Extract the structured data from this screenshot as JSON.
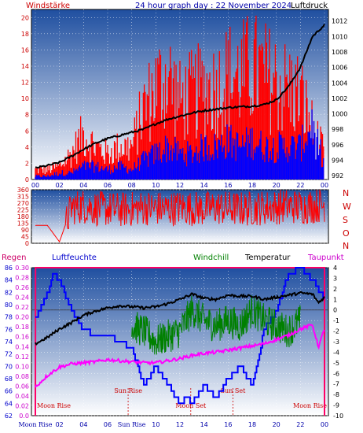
{
  "colors": {
    "panel_top": "#1f4fa0",
    "panel_bottom": "#ffffff",
    "wind_bars": "#ff0000",
    "gust": "#0000ff",
    "pressure_line": "#000000",
    "direction": "#ff0000",
    "humidity": "#0000ff",
    "windchill": "#008000",
    "temperature": "#000000",
    "dewpoint": "#ff00ff",
    "rain": "#ff0066",
    "event_line": "#cc0000"
  },
  "header": {
    "left_label": "Windstärke",
    "title": "24 hour graph day : 22 November 2024",
    "right_label": "Luftdruck"
  },
  "direction_labels": [
    "N",
    "W",
    "S",
    "O",
    "N"
  ],
  "bottom_header": {
    "rain": "Regen",
    "humidity": "Luftfeuchte",
    "windchill": "Windchill",
    "temperature": "Temperatur",
    "dewpoint": "Taupunkt"
  },
  "events": [
    {
      "label": "Moon Rise",
      "hour": 0.0
    },
    {
      "label": "Sun Rise",
      "hour": 7.7
    },
    {
      "label": "Moon Set",
      "hour": 12.9
    },
    {
      "label": "Sun Set",
      "hour": 16.4
    },
    {
      "label": "Moon Rise",
      "hour": 23.3
    }
  ],
  "x_axis_labels": [
    "00",
    "02",
    "04",
    "06",
    "08",
    "10",
    "12",
    "14",
    "16",
    "18",
    "20",
    "22",
    "00"
  ],
  "bottom_x_axis_labels": [
    "Moon Rise",
    "02",
    "04",
    "06",
    "Sun Rise",
    "10",
    "12",
    "14",
    "16",
    "18",
    "20",
    "22",
    "00"
  ],
  "chart_data": [
    {
      "type": "bar",
      "title": "24 hour graph day : 22 November 2024",
      "x_unit": "hour",
      "x_tick_labels": [
        "00",
        "02",
        "04",
        "06",
        "08",
        "10",
        "12",
        "14",
        "16",
        "18",
        "20",
        "22",
        "00"
      ],
      "left_axis": {
        "label": "Windstärke",
        "ticks": [
          0,
          2,
          4,
          6,
          8,
          10,
          12,
          14,
          16,
          18,
          20
        ],
        "range": [
          0,
          21
        ]
      },
      "right_axis": {
        "label": "Luftdruck",
        "ticks": [
          992,
          994,
          996,
          998,
          1000,
          1002,
          1004,
          1006,
          1008,
          1010,
          1012
        ],
        "range": [
          991.5,
          1013.5
        ]
      },
      "series": [
        {
          "name": "Windstärke",
          "kind": "bars",
          "axis": "left",
          "x": [
            0,
            1,
            2,
            3,
            4,
            5,
            6,
            7,
            8,
            9,
            10,
            11,
            12,
            13,
            14,
            15,
            16,
            17,
            18,
            19,
            20,
            21,
            22,
            23,
            24
          ],
          "y": [
            1.5,
            1.5,
            2,
            4,
            7,
            5,
            4,
            5,
            5,
            11,
            14,
            16,
            12,
            13,
            14,
            14,
            16,
            16,
            17,
            16,
            15,
            14,
            13,
            8,
            4
          ]
        },
        {
          "name": "gust",
          "kind": "bars",
          "axis": "left",
          "x": [
            0,
            1,
            2,
            3,
            4,
            5,
            6,
            7,
            8,
            9,
            10,
            11,
            12,
            13,
            14,
            15,
            16,
            17,
            18,
            19,
            20,
            21,
            22,
            23,
            24
          ],
          "y": [
            0.5,
            0.5,
            1,
            1,
            2,
            2,
            1.5,
            2,
            1.5,
            3,
            4,
            5,
            4,
            4,
            5,
            5,
            6,
            5,
            6,
            5,
            5,
            5,
            5,
            9,
            2
          ]
        },
        {
          "name": "Luftdruck",
          "kind": "line",
          "axis": "right",
          "x": [
            0,
            1,
            2,
            3,
            4,
            5,
            6,
            7,
            8,
            9,
            10,
            11,
            12,
            13,
            14,
            15,
            16,
            17,
            18,
            19,
            20,
            21,
            22,
            23,
            24
          ],
          "y": [
            993.0,
            993.3,
            993.7,
            994.5,
            995.4,
            996.2,
            996.8,
            997.2,
            997.6,
            998.0,
            998.7,
            999.3,
            999.7,
            1000.1,
            1000.4,
            1000.6,
            1000.8,
            1000.9,
            1001.0,
            1001.2,
            1001.8,
            1003.5,
            1006.0,
            1010.0,
            1011.5
          ]
        }
      ]
    },
    {
      "type": "line",
      "title": "",
      "x_unit": "hour",
      "y_axis": {
        "ticks": [
          0,
          45,
          90,
          135,
          180,
          225,
          270,
          315,
          360
        ],
        "range": [
          0,
          360
        ]
      },
      "right_labels": [
        "N",
        "W",
        "S",
        "O",
        "N"
      ],
      "series": [
        {
          "name": "direction",
          "x": [
            0,
            1,
            2,
            3,
            4,
            5,
            6,
            7,
            8,
            9,
            10,
            11,
            12,
            13,
            14,
            15,
            16,
            17,
            18,
            19,
            20,
            21,
            22,
            23,
            24
          ],
          "y": [
            120,
            120,
            10,
            240,
            250,
            235,
            230,
            225,
            230,
            240,
            235,
            230,
            240,
            235,
            230,
            240,
            235,
            230,
            235,
            240,
            245,
            250,
            245,
            250,
            260
          ],
          "spread": 120
        }
      ]
    },
    {
      "type": "line",
      "title": "",
      "x_unit": "hour",
      "events": [
        "Moon Rise",
        "Sun Rise",
        "Moon Set",
        "Sun Set",
        "Moon Rise"
      ],
      "axes": {
        "humidity": {
          "label": "Luftfeuchte",
          "ticks": [
            62,
            64,
            66,
            68,
            70,
            72,
            74,
            76,
            78,
            80,
            82,
            84,
            86
          ],
          "range": [
            62,
            86
          ]
        },
        "rain": {
          "label": "Regen",
          "ticks": [
            0.0,
            0.02,
            0.04,
            0.06,
            0.08,
            0.1,
            0.12,
            0.14,
            0.16,
            0.18,
            0.2,
            0.22,
            0.24,
            0.26,
            0.28,
            0.3
          ],
          "range": [
            0,
            0.3
          ]
        },
        "temperature": {
          "label": "Temperatur",
          "ticks": [
            -10,
            -9,
            -8,
            -7,
            -6,
            -5,
            -4,
            -3,
            -2,
            -1,
            0,
            1,
            2,
            3,
            4
          ],
          "range": [
            -10,
            4
          ]
        }
      },
      "series": [
        {
          "name": "Luftfeuchte",
          "axis": "humidity",
          "x": [
            0,
            0.5,
            1,
            1.5,
            2,
            3,
            4,
            5,
            6,
            7,
            8,
            9,
            10,
            11,
            12,
            12.5,
            13,
            14,
            15,
            16,
            17,
            18,
            19,
            20,
            21,
            22,
            23,
            24
          ],
          "y": [
            78,
            80,
            82,
            85,
            84,
            79,
            76,
            75,
            75,
            74,
            73,
            67,
            70,
            67,
            64,
            65,
            64,
            67,
            65,
            68,
            70,
            67,
            76,
            79,
            85,
            86,
            84,
            81
          ]
        },
        {
          "name": "Regen",
          "axis": "rain",
          "x": [
            0,
            0.01,
            0.02,
            23.2,
            23.21,
            24
          ],
          "y": [
            0,
            0.3,
            0.3,
            0.3,
            0.3,
            0.3
          ]
        },
        {
          "name": "Windchill",
          "axis": "temperature",
          "x": [
            8,
            9,
            10,
            11,
            12,
            13,
            14,
            15,
            16,
            17,
            18,
            19,
            20,
            21,
            22
          ],
          "y": [
            -1.5,
            -2,
            -3,
            -2.5,
            -2,
            0,
            -1,
            -1.5,
            -1,
            -1.5,
            0,
            -1,
            -1.5,
            -2,
            -1
          ]
        },
        {
          "name": "Temperatur",
          "axis": "temperature",
          "x": [
            0,
            1,
            2,
            3,
            4,
            5,
            6,
            7,
            8,
            9,
            10,
            11,
            12,
            13,
            14,
            15,
            16,
            17,
            18,
            19,
            20,
            21,
            22,
            23,
            23.5,
            24
          ],
          "y": [
            -3.2,
            -2.6,
            -1.8,
            -1.2,
            -0.5,
            -0.1,
            0.2,
            0.4,
            0.3,
            0.2,
            0.3,
            0.6,
            1.0,
            1.5,
            1.1,
            1.0,
            1.4,
            1.3,
            1.3,
            1.0,
            1.2,
            1.4,
            1.6,
            1.5,
            0.7,
            1.2
          ]
        },
        {
          "name": "Taupunkt",
          "axis": "temperature",
          "x": [
            0,
            1,
            2,
            3,
            4,
            5,
            6,
            7,
            8,
            9,
            10,
            11,
            12,
            13,
            14,
            15,
            16,
            17,
            18,
            19,
            20,
            21,
            22,
            23,
            23.5,
            24
          ],
          "y": [
            -7.3,
            -6.2,
            -5.4,
            -5.1,
            -5.0,
            -4.9,
            -4.7,
            -4.8,
            -4.9,
            -5.0,
            -5.0,
            -4.8,
            -4.6,
            -4.3,
            -4.1,
            -4.0,
            -3.8,
            -3.6,
            -3.4,
            -3.2,
            -2.8,
            -2.4,
            -1.8,
            -1.4,
            -3.5,
            -1.8
          ]
        }
      ]
    }
  ]
}
